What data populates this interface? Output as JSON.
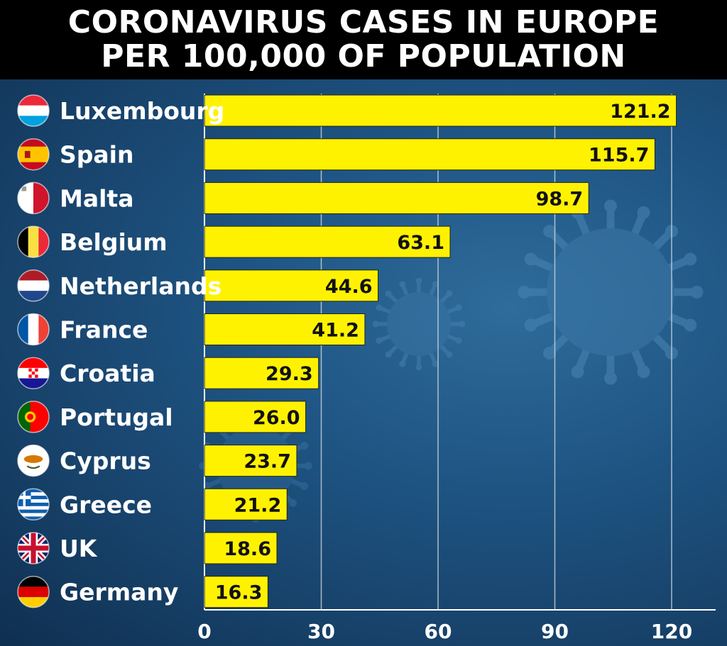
{
  "header": {
    "title_line1": "CORONAVIRUS CASES IN EUROPE",
    "title_line2": "PER 100,000 OF POPULATION"
  },
  "colors": {
    "bar": "#fff200",
    "bar_outline": "#222222",
    "background": "#1b4a72",
    "header_bg": "#000000",
    "gridline": "#cfd8e0"
  },
  "chart_data": {
    "type": "bar",
    "orientation": "horizontal",
    "title": "CORONAVIRUS CASES IN EUROPE PER 100,000 OF POPULATION",
    "categories": [
      "Luxembourg",
      "Spain",
      "Malta",
      "Belgium",
      "Netherlands",
      "France",
      "Croatia",
      "Portugal",
      "Cyprus",
      "Greece",
      "UK",
      "Germany"
    ],
    "values": [
      121.2,
      115.7,
      98.7,
      63.1,
      44.6,
      41.2,
      29.3,
      26.0,
      23.7,
      21.2,
      18.6,
      16.3
    ],
    "value_labels": [
      "121.2",
      "115.7",
      "98.7",
      "63.1",
      "44.6",
      "41.2",
      "29.3",
      "26.0",
      "23.7",
      "21.2",
      "18.6",
      "16.3"
    ],
    "flag_icons": [
      "luxembourg-flag-icon",
      "spain-flag-icon",
      "malta-flag-icon",
      "belgium-flag-icon",
      "netherlands-flag-icon",
      "france-flag-icon",
      "croatia-flag-icon",
      "portugal-flag-icon",
      "cyprus-flag-icon",
      "greece-flag-icon",
      "uk-flag-icon",
      "germany-flag-icon"
    ],
    "xlim": [
      0,
      123
    ],
    "xticks": [
      0,
      30,
      60,
      90,
      120
    ],
    "xlabel": "",
    "ylabel": "",
    "grid": true
  }
}
